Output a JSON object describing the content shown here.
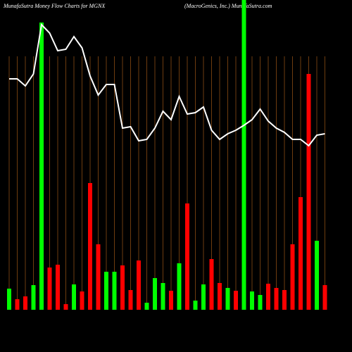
{
  "chart_data": {
    "type": "bar",
    "title": "MunafaSutra  Money Flow  Charts for MGNX",
    "subtitle": "(MacroGenics, Inc.) MunafaSutra.com",
    "values": [
      30,
      15,
      19,
      35,
      408,
      60,
      64,
      8,
      36,
      26,
      180,
      93,
      54,
      54,
      63,
      28,
      70,
      10,
      45,
      38,
      27,
      66,
      151,
      13,
      36,
      72,
      38,
      31,
      27,
      440,
      26,
      21,
      37,
      31,
      28,
      93,
      160,
      335,
      98,
      35
    ],
    "colors": [
      "#00ff00",
      "#ff0000",
      "#ff0000",
      "#00ff00",
      "#00ff00",
      "#ff0000",
      "#ff0000",
      "#ff0000",
      "#00ff00",
      "#ff0000",
      "#ff0000",
      "#ff0000",
      "#00ff00",
      "#00ff00",
      "#ff0000",
      "#ff0000",
      "#ff0000",
      "#00ff00",
      "#00ff00",
      "#00ff00",
      "#ff0000",
      "#00ff00",
      "#ff0000",
      "#00ff00",
      "#00ff00",
      "#ff0000",
      "#ff0000",
      "#00ff00",
      "#ff0000",
      "#00ff00",
      "#00ff00",
      "#00ff00",
      "#ff0000",
      "#ff0000",
      "#ff0000",
      "#ff0000",
      "#ff0000",
      "#ff0000",
      "#00ff00",
      "#ff0000"
    ],
    "line": {
      "color": "#ffffff",
      "values": [
        328,
        328,
        318,
        335,
        405,
        393,
        368,
        370,
        388,
        372,
        332,
        305,
        320,
        320,
        258,
        260,
        240,
        242,
        258,
        282,
        270,
        303,
        278,
        280,
        288,
        255,
        242,
        250,
        255,
        262,
        270,
        285,
        268,
        258,
        252,
        242,
        242,
        233,
        248,
        250
      ]
    },
    "ylim": [
      0,
      440
    ],
    "grid_color": "#b8651a"
  }
}
